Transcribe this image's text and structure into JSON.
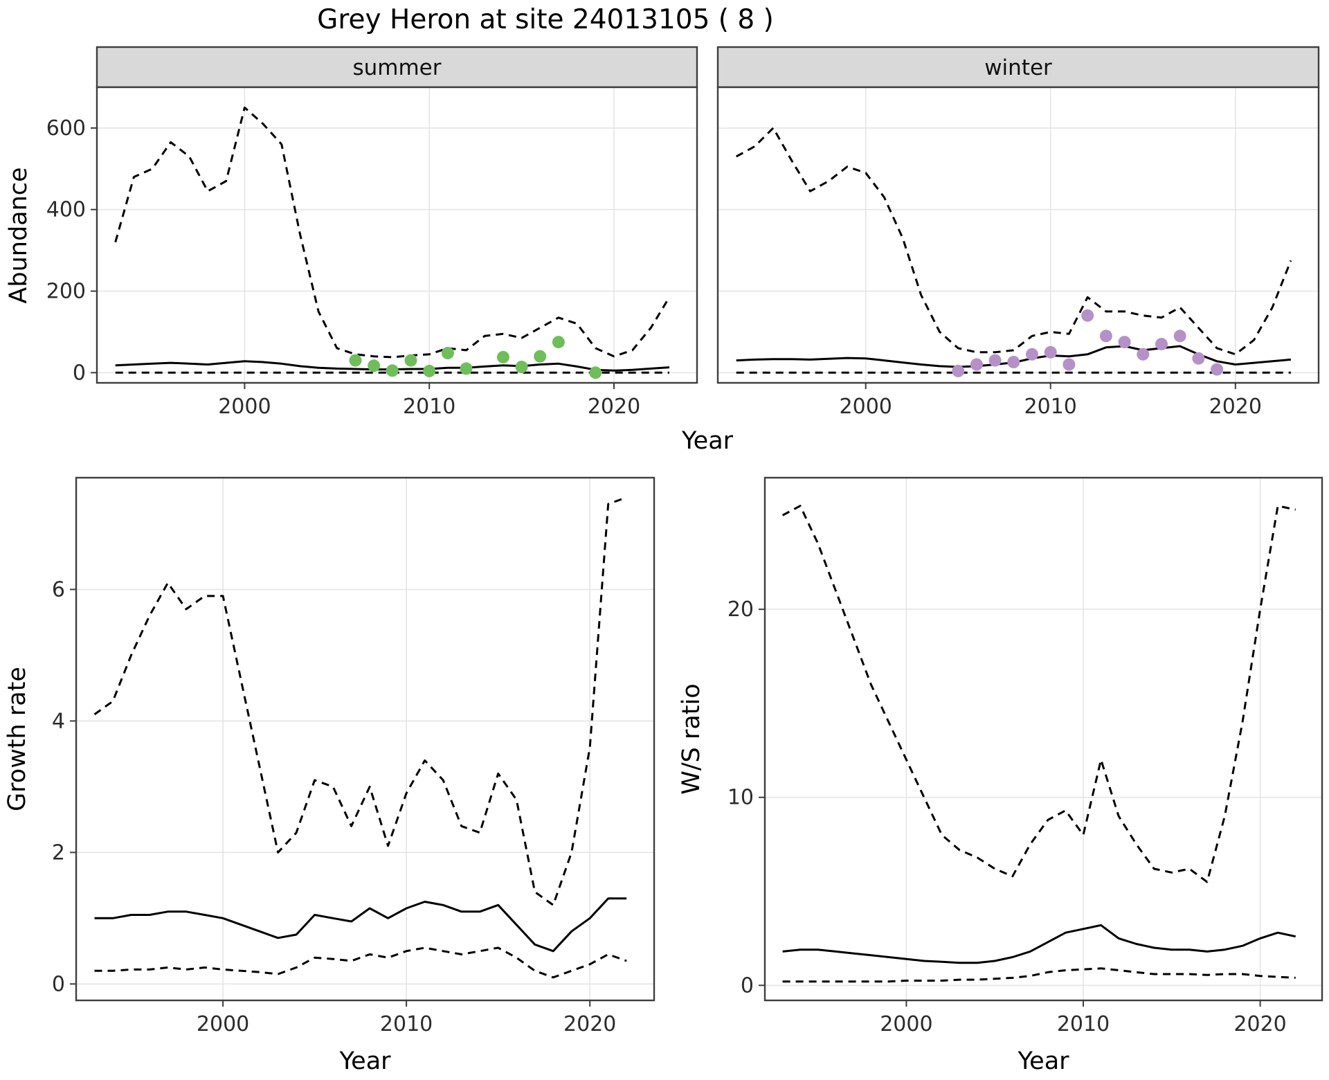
{
  "title": "Grey Heron at site 24013105 ( 8 )",
  "colors": {
    "line": "#000000",
    "grid": "#E4E4E4",
    "border": "#3d3d3d",
    "strip_bg": "#D9D9D9",
    "summer_points": "#6FBE5B",
    "winter_points": "#B591C8"
  },
  "chart_data": [
    {
      "id": "abundance",
      "type": "line",
      "title": "Grey Heron at site 24013105 ( 8 )",
      "xlabel": "Year",
      "ylabel": "Abundance",
      "xlim": [
        1992,
        2024.5
      ],
      "ylim": [
        -25,
        700
      ],
      "xticks": [
        2000,
        2010,
        2020
      ],
      "yticks": [
        0,
        200,
        400,
        600
      ],
      "legend_position": "none",
      "facets": [
        "summer",
        "winter"
      ],
      "panels": [
        {
          "facet": "summer",
          "years": [
            1993,
            1994,
            1995,
            1996,
            1997,
            1998,
            1999,
            2000,
            2001,
            2002,
            2003,
            2004,
            2005,
            2006,
            2007,
            2008,
            2009,
            2010,
            2011,
            2012,
            2013,
            2014,
            2015,
            2016,
            2017,
            2018,
            2019,
            2020,
            2021,
            2022,
            2023
          ],
          "upper_ci": [
            320,
            480,
            500,
            565,
            530,
            445,
            470,
            650,
            610,
            560,
            340,
            150,
            60,
            45,
            40,
            38,
            42,
            45,
            60,
            55,
            90,
            95,
            85,
            110,
            135,
            120,
            60,
            40,
            55,
            110,
            185
          ],
          "median": [
            18,
            20,
            22,
            24,
            22,
            20,
            24,
            28,
            26,
            22,
            16,
            12,
            10,
            9,
            8,
            8,
            9,
            9,
            12,
            12,
            15,
            18,
            16,
            20,
            22,
            15,
            7,
            5,
            7,
            10,
            13
          ],
          "lower_ci": [
            0,
            0,
            0,
            0,
            0,
            0,
            0,
            0,
            0,
            0,
            0,
            0,
            0,
            0,
            0,
            0,
            0,
            0,
            0,
            0,
            0,
            0,
            0,
            0,
            0,
            0,
            0,
            0,
            0,
            0,
            0
          ],
          "observations": {
            "color": "#6FBE5B",
            "years": [
              2006,
              2007,
              2008,
              2009,
              2010,
              2011,
              2012,
              2014,
              2015,
              2016,
              2017,
              2019
            ],
            "values": [
              30,
              17,
              5,
              30,
              4,
              48,
              10,
              38,
              14,
              40,
              75,
              0
            ]
          }
        },
        {
          "facet": "winter",
          "years": [
            1993,
            1994,
            1995,
            1996,
            1997,
            1998,
            1999,
            2000,
            2001,
            2002,
            2003,
            2004,
            2005,
            2006,
            2007,
            2008,
            2009,
            2010,
            2011,
            2012,
            2013,
            2014,
            2015,
            2016,
            2017,
            2018,
            2019,
            2020,
            2021,
            2022,
            2023
          ],
          "upper_ci": [
            530,
            555,
            600,
            520,
            445,
            470,
            505,
            490,
            430,
            330,
            190,
            100,
            60,
            50,
            50,
            55,
            90,
            100,
            95,
            185,
            150,
            150,
            140,
            135,
            160,
            110,
            60,
            45,
            80,
            160,
            275
          ],
          "median": [
            30,
            32,
            33,
            33,
            32,
            34,
            36,
            35,
            30,
            25,
            20,
            16,
            14,
            16,
            20,
            25,
            35,
            42,
            40,
            45,
            62,
            65,
            55,
            60,
            65,
            45,
            28,
            20,
            24,
            28,
            32
          ],
          "lower_ci": [
            0,
            0,
            0,
            0,
            0,
            0,
            0,
            0,
            0,
            0,
            0,
            0,
            0,
            0,
            0,
            0,
            0,
            0,
            0,
            0,
            0,
            0,
            0,
            0,
            0,
            0,
            0,
            0,
            0,
            0,
            0
          ],
          "observations": {
            "color": "#B591C8",
            "years": [
              2005,
              2006,
              2007,
              2008,
              2009,
              2010,
              2011,
              2012,
              2013,
              2014,
              2015,
              2016,
              2017,
              2018,
              2019
            ],
            "values": [
              4,
              20,
              30,
              26,
              45,
              50,
              20,
              140,
              90,
              75,
              45,
              70,
              90,
              35,
              8
            ]
          }
        }
      ]
    },
    {
      "id": "growth_rate",
      "type": "line",
      "xlabel": "Year",
      "ylabel": "Growth rate",
      "xlim": [
        1992,
        2023.5
      ],
      "ylim": [
        -0.25,
        7.7
      ],
      "xticks": [
        2000,
        2010,
        2020
      ],
      "yticks": [
        0,
        2,
        4,
        6
      ],
      "years": [
        1993,
        1994,
        1995,
        1996,
        1997,
        1998,
        1999,
        2000,
        2001,
        2002,
        2003,
        2004,
        2005,
        2006,
        2007,
        2008,
        2009,
        2010,
        2011,
        2012,
        2013,
        2014,
        2015,
        2016,
        2017,
        2018,
        2019,
        2020,
        2021,
        2022
      ],
      "upper_ci": [
        4.1,
        4.3,
        5.0,
        5.6,
        6.1,
        5.7,
        5.9,
        5.9,
        4.6,
        3.3,
        2.0,
        2.3,
        3.1,
        3.0,
        2.4,
        3.0,
        2.1,
        2.9,
        3.4,
        3.1,
        2.4,
        2.3,
        3.2,
        2.8,
        1.4,
        1.2,
        2.0,
        3.6,
        7.3,
        7.4
      ],
      "median": [
        1.0,
        1.0,
        1.05,
        1.05,
        1.1,
        1.1,
        1.05,
        1.0,
        0.9,
        0.8,
        0.7,
        0.75,
        1.05,
        1.0,
        0.95,
        1.15,
        1.0,
        1.15,
        1.25,
        1.2,
        1.1,
        1.1,
        1.2,
        0.9,
        0.6,
        0.5,
        0.8,
        1.0,
        1.3,
        1.3
      ],
      "lower_ci": [
        0.2,
        0.2,
        0.22,
        0.22,
        0.25,
        0.22,
        0.25,
        0.22,
        0.2,
        0.18,
        0.15,
        0.25,
        0.4,
        0.38,
        0.35,
        0.45,
        0.4,
        0.5,
        0.55,
        0.5,
        0.45,
        0.5,
        0.55,
        0.4,
        0.2,
        0.1,
        0.2,
        0.3,
        0.45,
        0.35
      ]
    },
    {
      "id": "ws_ratio",
      "type": "line",
      "xlabel": "Year",
      "ylabel": "W/S ratio",
      "xlim": [
        1992,
        2023.5
      ],
      "ylim": [
        -0.8,
        27
      ],
      "xticks": [
        2000,
        2010,
        2020
      ],
      "yticks": [
        0,
        10,
        20
      ],
      "years": [
        1993,
        1994,
        1995,
        1996,
        1997,
        1998,
        1999,
        2000,
        2001,
        2002,
        2003,
        2004,
        2005,
        2006,
        2007,
        2008,
        2009,
        2010,
        2011,
        2012,
        2013,
        2014,
        2015,
        2016,
        2017,
        2018,
        2019,
        2020,
        2021,
        2022
      ],
      "upper_ci": [
        25.0,
        25.5,
        23.5,
        21.0,
        18.5,
        16.0,
        14.0,
        12.0,
        10.0,
        8.0,
        7.2,
        6.8,
        6.2,
        5.8,
        7.5,
        8.8,
        9.3,
        8.0,
        12.0,
        9.0,
        7.5,
        6.2,
        6.0,
        6.2,
        5.5,
        9.0,
        14.0,
        20.0,
        25.5,
        25.3
      ],
      "median": [
        1.8,
        1.9,
        1.9,
        1.8,
        1.7,
        1.6,
        1.5,
        1.4,
        1.3,
        1.25,
        1.2,
        1.2,
        1.3,
        1.5,
        1.8,
        2.3,
        2.8,
        3.0,
        3.2,
        2.5,
        2.2,
        2.0,
        1.9,
        1.9,
        1.8,
        1.9,
        2.1,
        2.5,
        2.8,
        2.6
      ],
      "lower_ci": [
        0.2,
        0.2,
        0.2,
        0.2,
        0.2,
        0.2,
        0.2,
        0.25,
        0.25,
        0.25,
        0.3,
        0.3,
        0.35,
        0.4,
        0.5,
        0.7,
        0.8,
        0.85,
        0.9,
        0.8,
        0.7,
        0.6,
        0.6,
        0.6,
        0.55,
        0.6,
        0.6,
        0.5,
        0.45,
        0.4
      ]
    }
  ]
}
